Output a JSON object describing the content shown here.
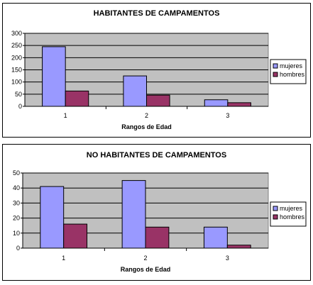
{
  "chart_data": [
    {
      "type": "bar",
      "title": "HABITANTES DE CAMPAMENTOS",
      "xlabel": "Rangos de Edad",
      "ylabel": "",
      "categories": [
        "1",
        "2",
        "3"
      ],
      "ylim": [
        0,
        300
      ],
      "yticks": [
        "0",
        "50",
        "100",
        "150",
        "200",
        "250",
        "300"
      ],
      "grid": true,
      "legend": "right",
      "series": [
        {
          "name": "mujeres",
          "values": [
            245,
            125,
            27
          ],
          "color": "#9999FF"
        },
        {
          "name": "hombres",
          "values": [
            63,
            46,
            15
          ],
          "color": "#993366"
        }
      ],
      "plot_bg": "#C0C0C0"
    },
    {
      "type": "bar",
      "title": "NO HABITANTES DE CAMPAMENTOS",
      "xlabel": "Rangos de Edad",
      "ylabel": "",
      "categories": [
        "1",
        "2",
        "3"
      ],
      "ylim": [
        0,
        50
      ],
      "yticks": [
        "0",
        "10",
        "20",
        "30",
        "40",
        "50"
      ],
      "grid": true,
      "legend": "right",
      "series": [
        {
          "name": "mujeres",
          "values": [
            41,
            45,
            14
          ],
          "color": "#9999FF"
        },
        {
          "name": "hombres",
          "values": [
            16,
            14,
            2
          ],
          "color": "#993366"
        }
      ],
      "plot_bg": "#C0C0C0"
    }
  ]
}
